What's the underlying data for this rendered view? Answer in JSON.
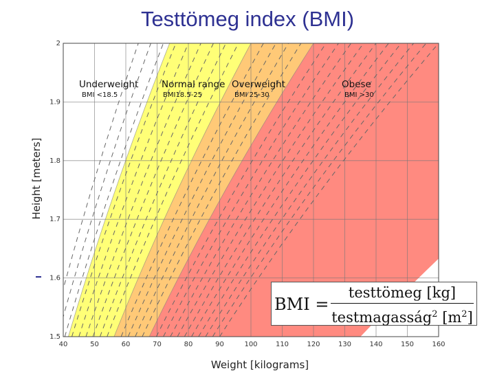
{
  "slide": {
    "title": "Testtömeg index (BMI)"
  },
  "chart_data": {
    "type": "area",
    "title": "",
    "xlabel": "Weight [kilograms]",
    "ylabel": "Height [meters]",
    "xlim": [
      40,
      160
    ],
    "ylim": [
      1.5,
      2.0
    ],
    "x_ticks": [
      40,
      50,
      60,
      70,
      80,
      90,
      100,
      110,
      120,
      130,
      140,
      150,
      160
    ],
    "y_ticks": [
      {
        "value": 1.5,
        "label": "1.5"
      },
      {
        "value": 1.6,
        "label": "1.6"
      },
      {
        "value": 1.7,
        "label": "1.7"
      },
      {
        "value": 1.8,
        "label": "1.8"
      },
      {
        "value": 1.9,
        "label": "1.9"
      },
      {
        "value": 2.0,
        "label": "2"
      }
    ],
    "grid": true,
    "bands": [
      {
        "name": "Underweight",
        "range_label": "BMI <18.5",
        "bmi_min": 0,
        "bmi_max": 18.5,
        "color": "#ffffff"
      },
      {
        "name": "Normal range",
        "range_label": "BMI18.5-25",
        "bmi_min": 18.5,
        "bmi_max": 25,
        "color": "#ffff77"
      },
      {
        "name": "Overweight",
        "range_label": "BMI 25-30",
        "bmi_min": 25,
        "bmi_max": 30,
        "color": "#ffc977"
      },
      {
        "name": "Obese",
        "range_label": "BMI >30",
        "bmi_min": 30,
        "bmi_max": 60,
        "color": "#ff8a80"
      }
    ],
    "iso_bmi_lines": [
      16,
      17,
      18,
      19,
      20,
      21,
      22,
      23,
      24,
      26,
      27,
      28,
      29,
      31,
      32,
      33,
      34,
      35,
      36,
      37,
      38,
      39,
      40
    ]
  },
  "formula": {
    "lhs": "BMI =",
    "numerator": "testtömeg [kg]",
    "denominator_base": "testmagasság",
    "denominator_exp": "2",
    "denominator_unit": "[m",
    "denominator_unit_exp": "2",
    "denominator_close": "]"
  },
  "colors": {
    "title": "#2e3192",
    "grid": "#777777"
  }
}
